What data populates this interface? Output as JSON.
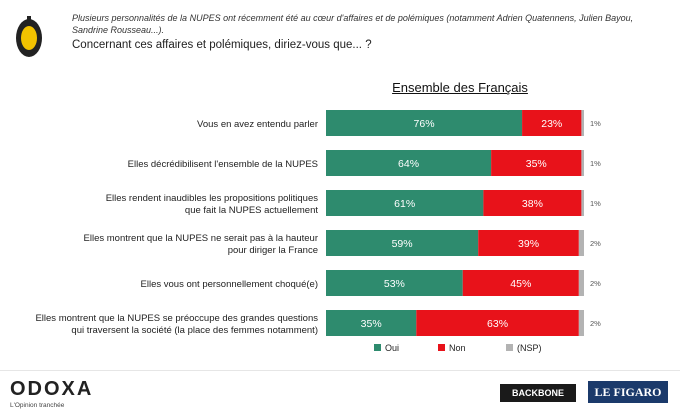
{
  "header": {
    "intro": "Plusieurs personnalités de la NUPES ont récemment été au cœur d'affaires et de polémiques (notamment Adrien Quatennens, Julien Bayou, Sandrine Rousseau...).",
    "question": "Concernant ces affaires et polémiques, diriez-vous que... ?"
  },
  "chart_data": {
    "type": "bar",
    "stacked": true,
    "orientation": "horizontal",
    "title": "Ensemble des Français",
    "categories": [
      [
        "Vous en avez entendu parler"
      ],
      [
        "Elles décrédibilisent l'ensemble de la NUPES"
      ],
      [
        "Elles rendent inaudibles les propositions politiques",
        "que fait la NUPES actuellement"
      ],
      [
        "Elles montrent que la NUPES ne serait pas à la hauteur",
        "pour diriger la France"
      ],
      [
        "Elles vous ont personnellement choqué(e)"
      ],
      [
        "Elles montrent que la NUPES se préoccupe des grandes questions",
        "qui traversent la société (la place des femmes notamment)"
      ]
    ],
    "series": [
      {
        "name": "Oui",
        "color": "#2e8b6e",
        "values": [
          76,
          64,
          61,
          59,
          53,
          35
        ]
      },
      {
        "name": "Non",
        "color": "#e8121a",
        "values": [
          23,
          35,
          38,
          39,
          45,
          63
        ]
      },
      {
        "name": "(NSP)",
        "color": "#b3b3b3",
        "values": [
          1,
          1,
          1,
          2,
          2,
          2
        ]
      }
    ],
    "value_labels": {
      "Oui": [
        "76%",
        "64%",
        "61%",
        "59%",
        "53%",
        "35%"
      ],
      "Non": [
        "23%",
        "35%",
        "38%",
        "39%",
        "45%",
        "63%"
      ],
      "(NSP)": [
        "1%",
        "1%",
        "1%",
        "2%",
        "2%",
        "2%"
      ]
    },
    "xlim": [
      0,
      100
    ]
  },
  "footer": {
    "brand": "ODOXA",
    "tagline": "L'Opinion tranchée",
    "partner1": "BACKBONE",
    "partner2": "LE FIGARO"
  }
}
